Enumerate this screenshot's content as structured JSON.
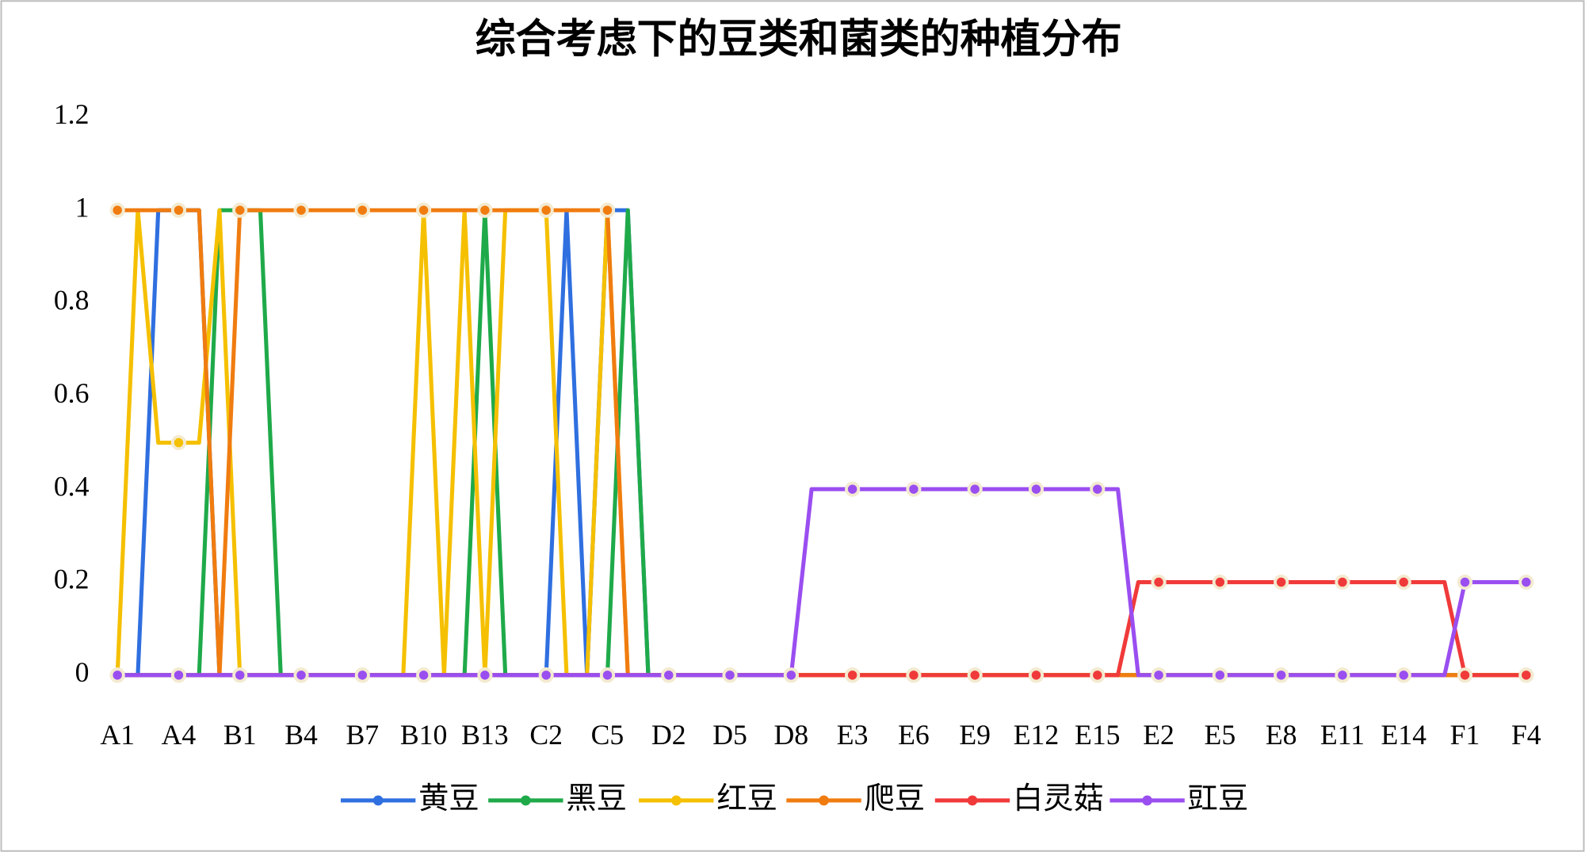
{
  "chart_data": {
    "type": "line",
    "title": "综合考虑下的豆类和菌类的种植分布",
    "categories": [
      "A1",
      null,
      null,
      "A4",
      null,
      null,
      "B1",
      null,
      null,
      "B4",
      null,
      null,
      "B7",
      null,
      null,
      "B10",
      null,
      null,
      "B13",
      null,
      null,
      "C2",
      null,
      null,
      "C5",
      null,
      null,
      "D2",
      null,
      null,
      "D5",
      null,
      null,
      "D8",
      null,
      null,
      "E3",
      null,
      null,
      "E6",
      null,
      null,
      "E9",
      null,
      null,
      "E12",
      null,
      null,
      "E15",
      null,
      null,
      "E2",
      null,
      null,
      "E5",
      null,
      null,
      "E8",
      null,
      null,
      "E11",
      null,
      null,
      "E14",
      null,
      null,
      "F1",
      null,
      null,
      "F4"
    ],
    "ylim": [
      0,
      1.2
    ],
    "yticks": [
      0,
      0.2,
      0.4,
      0.6,
      0.8,
      1,
      1.2
    ],
    "grid": false,
    "legend": "bottom",
    "series": [
      {
        "name": "黄豆",
        "color": "#2f6fe0",
        "values": [
          0,
          0,
          1,
          1,
          1,
          0,
          0,
          0,
          0,
          0,
          0,
          0,
          0,
          0,
          0,
          0,
          0,
          0,
          0,
          0,
          0,
          0,
          1,
          0,
          1,
          1,
          0,
          0,
          0,
          0,
          0,
          0,
          0,
          0,
          0,
          0,
          0,
          0,
          0,
          0,
          0,
          0,
          0,
          0,
          0,
          0,
          0,
          0,
          0,
          0,
          0,
          0,
          0,
          0,
          0,
          0,
          0,
          0,
          0,
          0,
          0,
          0,
          0,
          0,
          0,
          0,
          0,
          0,
          0,
          0
        ]
      },
      {
        "name": "黑豆",
        "color": "#1faa4a",
        "values": [
          0,
          0,
          0,
          0,
          0,
          1,
          1,
          1,
          0,
          0,
          0,
          0,
          0,
          0,
          0,
          0,
          0,
          0,
          1,
          0,
          0,
          0,
          0,
          0,
          0,
          1,
          0,
          0,
          0,
          0,
          0,
          0,
          0,
          0,
          0,
          0,
          0,
          0,
          0,
          0,
          0,
          0,
          0,
          0,
          0,
          0,
          0,
          0,
          0,
          0,
          0,
          0,
          0,
          0,
          0,
          0,
          0,
          0,
          0,
          0,
          0,
          0,
          0,
          0,
          0,
          0,
          0,
          0,
          0,
          0
        ]
      },
      {
        "name": "红豆",
        "color": "#f5c000",
        "values": [
          0,
          1,
          0.5,
          0.5,
          0.5,
          1,
          0,
          0,
          0,
          0,
          0,
          0,
          0,
          0,
          0,
          1,
          0,
          1,
          0,
          1,
          1,
          1,
          0,
          0,
          1,
          0,
          0,
          0,
          0,
          0,
          0,
          0,
          0,
          0,
          0,
          0,
          0,
          0,
          0,
          0,
          0,
          0,
          0,
          0,
          0,
          0,
          0,
          0,
          0,
          0,
          0,
          0,
          0,
          0,
          0,
          0,
          0,
          0,
          0,
          0,
          0,
          0,
          0,
          0,
          0,
          0,
          0,
          0,
          0,
          0
        ]
      },
      {
        "name": "爬豆",
        "color": "#f07c10",
        "values": [
          1,
          1,
          1,
          1,
          1,
          0,
          1,
          1,
          1,
          1,
          1,
          1,
          1,
          1,
          1,
          1,
          1,
          1,
          1,
          1,
          1,
          1,
          1,
          1,
          1,
          0,
          0,
          0,
          0,
          0,
          0,
          0,
          0,
          0,
          0,
          0,
          0,
          0,
          0,
          0,
          0,
          0,
          0,
          0,
          0,
          0,
          0,
          0,
          0,
          0,
          0,
          0,
          0,
          0,
          0,
          0,
          0,
          0,
          0,
          0,
          0,
          0,
          0,
          0,
          0,
          0,
          0,
          0,
          0,
          0
        ]
      },
      {
        "name": "白灵菇",
        "color": "#f03a3a",
        "values": [
          0,
          0,
          0,
          0,
          0,
          0,
          0,
          0,
          0,
          0,
          0,
          0,
          0,
          0,
          0,
          0,
          0,
          0,
          0,
          0,
          0,
          0,
          0,
          0,
          0,
          0,
          0,
          0,
          0,
          0,
          0,
          0,
          0,
          0,
          0,
          0,
          0,
          0,
          0,
          0,
          0,
          0,
          0,
          0,
          0,
          0,
          0,
          0,
          0,
          0,
          0.2,
          0.2,
          0.2,
          0.2,
          0.2,
          0.2,
          0.2,
          0.2,
          0.2,
          0.2,
          0.2,
          0.2,
          0.2,
          0.2,
          0.2,
          0.2,
          0,
          0,
          0,
          0
        ]
      },
      {
        "name": "豇豆",
        "color": "#9a4ef0",
        "values": [
          0,
          0,
          0,
          0,
          0,
          0,
          0,
          0,
          0,
          0,
          0,
          0,
          0,
          0,
          0,
          0,
          0,
          0,
          0,
          0,
          0,
          0,
          0,
          0,
          0,
          0,
          0,
          0,
          0,
          0,
          0,
          0,
          0,
          0,
          0.4,
          0.4,
          0.4,
          0.4,
          0.4,
          0.4,
          0.4,
          0.4,
          0.4,
          0.4,
          0.4,
          0.4,
          0.4,
          0.4,
          0.4,
          0.4,
          0,
          0,
          0,
          0,
          0,
          0,
          0,
          0,
          0,
          0,
          0,
          0,
          0,
          0,
          0,
          0,
          0.2,
          0.2,
          0.2,
          0.2
        ]
      }
    ]
  }
}
